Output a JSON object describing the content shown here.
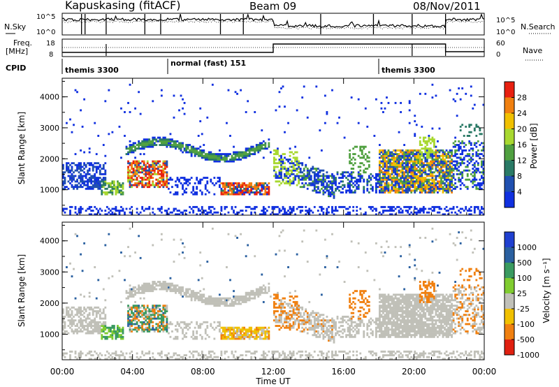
{
  "header": {
    "station": "Kapuskasing (fitACF)",
    "beam": "Beam 09",
    "date": "08/Nov/2011"
  },
  "noise_panel": {
    "left_label": "N.Sky",
    "right_label": "N.Search",
    "ticks_left": [
      "10^5",
      "10^0"
    ],
    "ticks_right": [
      "10^5",
      "10^0"
    ]
  },
  "freq_panel": {
    "left_label_1": "Freq.",
    "left_label_2": "[MHz]",
    "right_label": "Nave",
    "ticks_left": [
      "18",
      "8"
    ],
    "ticks_right": [
      "60",
      "0"
    ]
  },
  "cpid": {
    "label": "CPID",
    "segments": [
      {
        "start_hour": 0,
        "label": "themis 3300"
      },
      {
        "start_hour": 6,
        "label": "normal (fast) 151"
      },
      {
        "start_hour": 18,
        "label": "themis 3300"
      }
    ]
  },
  "chart_data": [
    {
      "type": "heatmap",
      "panel": "power",
      "ylabel": "Slant Range [km]",
      "xlabel": "",
      "xlim": [
        0,
        24
      ],
      "ylim": [
        180,
        4600
      ],
      "yticks": [
        1000,
        2000,
        3000,
        4000
      ],
      "colorbar": {
        "label": "Power [dB]",
        "ticks": [
          "4",
          "8",
          "12",
          "16",
          "20",
          "24",
          "28"
        ],
        "colors": [
          "#1030e0",
          "#2050b0",
          "#2a7a66",
          "#50a040",
          "#a8d830",
          "#f0c000",
          "#f08010",
          "#e82010"
        ]
      },
      "features": [
        {
          "desc": "band",
          "t0": 0,
          "t1": 2.5,
          "r0": 1000,
          "r1": 1900,
          "level": 1
        },
        {
          "desc": "arc",
          "t0": 3.8,
          "t1": 11.5,
          "r_base": 2300,
          "r_amp": 300,
          "level": 2
        },
        {
          "desc": "patch",
          "t0": 2.2,
          "t1": 3.5,
          "r0": 800,
          "r1": 1300,
          "level": 4
        },
        {
          "desc": "patch",
          "t0": 3.7,
          "t1": 6.0,
          "r0": 1100,
          "r1": 1900,
          "level": 6
        },
        {
          "desc": "patch",
          "t0": 9.0,
          "t1": 11.8,
          "r0": 800,
          "r1": 1100,
          "level": 6
        },
        {
          "desc": "band",
          "t0": 12.0,
          "t1": 15.5,
          "r0": 1000,
          "r1": 2200,
          "level": 1
        },
        {
          "desc": "band",
          "t0": 18.0,
          "t1": 22.0,
          "r0": 1200,
          "r1": 2300,
          "level": 4
        }
      ]
    },
    {
      "type": "heatmap",
      "panel": "velocity",
      "ylabel": "Slant Range [km]",
      "xlabel": "Time UT",
      "xlim": [
        0,
        24
      ],
      "ylim": [
        180,
        4600
      ],
      "yticks": [
        1000,
        2000,
        3000,
        4000
      ],
      "xticks": [
        "00:00",
        "04:00",
        "08:00",
        "12:00",
        "16:00",
        "20:00",
        "00:00"
      ],
      "colorbar": {
        "label": "Velocity [m s⁻¹]",
        "ticks": [
          "1000",
          "500",
          "100",
          "25",
          "-25",
          "-100",
          "-500",
          "-1000"
        ],
        "colors": [
          "#2040d0",
          "#2a60a0",
          "#3a9a60",
          "#80cc30",
          "#c0c0b8",
          "#f0c000",
          "#f08010",
          "#e02010"
        ]
      },
      "features": [
        {
          "desc": "arc",
          "t0": 3.8,
          "t1": 11.5,
          "r_base": 2300,
          "r_amp": 300,
          "level": "ground"
        },
        {
          "desc": "patch",
          "t0": 2.2,
          "t1": 6.0,
          "r0": 800,
          "r1": 1900,
          "level": "mixed"
        },
        {
          "desc": "patch",
          "t0": 9.0,
          "t1": 11.8,
          "r0": 800,
          "r1": 1300,
          "level": "negative"
        },
        {
          "desc": "band",
          "t0": 15.0,
          "t1": 22.0,
          "r0": 800,
          "r1": 2100,
          "level": "ground"
        }
      ]
    }
  ]
}
